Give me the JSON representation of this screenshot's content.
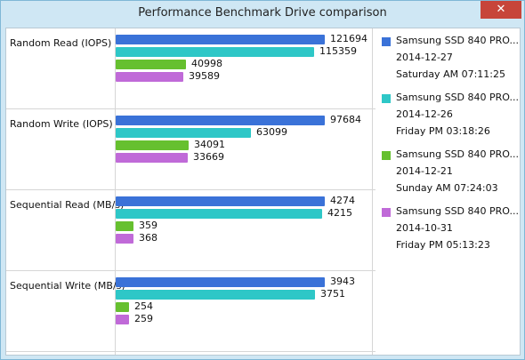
{
  "window": {
    "title": "Performance Benchmark Drive comparison",
    "close_icon_glyph": "✕"
  },
  "colors": {
    "series": [
      "#3a72d8",
      "#2ec7c7",
      "#66c02f",
      "#c06ad8"
    ]
  },
  "chart_data": {
    "type": "bar",
    "orientation": "horizontal",
    "groups": [
      {
        "label": "Random Read (IOPS)",
        "values": [
          121694,
          115359,
          40998,
          39589
        ]
      },
      {
        "label": "Random Write (IOPS)",
        "values": [
          97684,
          63099,
          34091,
          33669
        ]
      },
      {
        "label": "Sequential Read (MB/s)",
        "values": [
          4274,
          4215,
          359,
          368
        ]
      },
      {
        "label": "Sequential Write (MB/s)",
        "values": [
          3943,
          3751,
          254,
          259
        ]
      }
    ],
    "series": [
      {
        "name": "Samsung SSD 840 PRO...",
        "date": "2014-12-27",
        "time": "Saturday AM 07:11:25"
      },
      {
        "name": "Samsung SSD 840 PRO...",
        "date": "2014-12-26",
        "time": "Friday PM 03:18:26"
      },
      {
        "name": "Samsung SSD 840 PRO...",
        "date": "2014-12-21",
        "time": "Sunday AM 07:24:03"
      },
      {
        "name": "Samsung SSD 840 PRO...",
        "date": "2014-10-31",
        "time": "Friday PM 05:13:23"
      }
    ]
  }
}
